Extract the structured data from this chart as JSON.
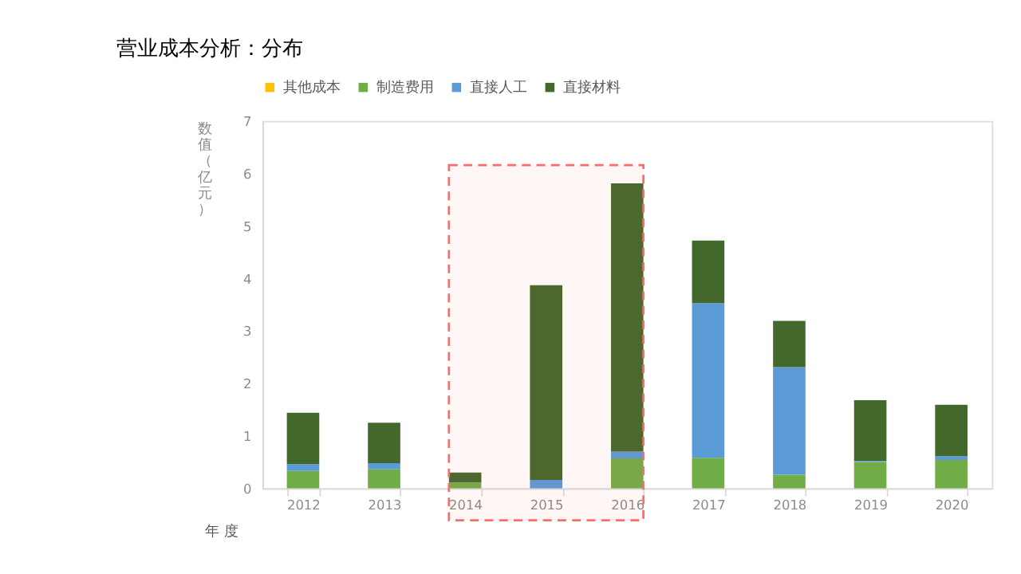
{
  "chart_data": {
    "type": "bar",
    "title": "营业成本分析：分布",
    "xlabel": "年 度",
    "ylabel": "数值（亿元）",
    "categories": [
      "2012",
      "2013",
      "2014",
      "2015",
      "2016",
      "2017",
      "2018",
      "2019",
      "2020"
    ],
    "series": [
      {
        "name": "其他成本",
        "color": "#ffc000",
        "values": [
          0,
          0,
          0,
          0,
          0,
          0,
          0,
          0,
          0
        ]
      },
      {
        "name": "制造费用",
        "color": "#70ad47",
        "values": [
          0.33,
          0.36,
          0.11,
          0,
          0.57,
          0.58,
          0.26,
          0.5,
          0.54
        ]
      },
      {
        "name": "直接人工",
        "color": "#5b9bd5",
        "values": [
          0.13,
          0.12,
          0,
          0.16,
          0.13,
          2.95,
          2.05,
          0.02,
          0.07
        ]
      },
      {
        "name": "直接材料",
        "color": "#43682b",
        "values": [
          0.98,
          0.77,
          0.19,
          3.71,
          5.11,
          1.19,
          0.88,
          1.16,
          0.98
        ]
      }
    ],
    "stacked": true,
    "ylim": [
      0,
      7
    ],
    "yticks": [
      0,
      1,
      2,
      3,
      4,
      5,
      6,
      7
    ],
    "grid": false,
    "legend": "top",
    "bands": [
      {
        "axis": "x",
        "from": "2014",
        "to": "2016",
        "color": "#ff6b6b"
      }
    ]
  }
}
